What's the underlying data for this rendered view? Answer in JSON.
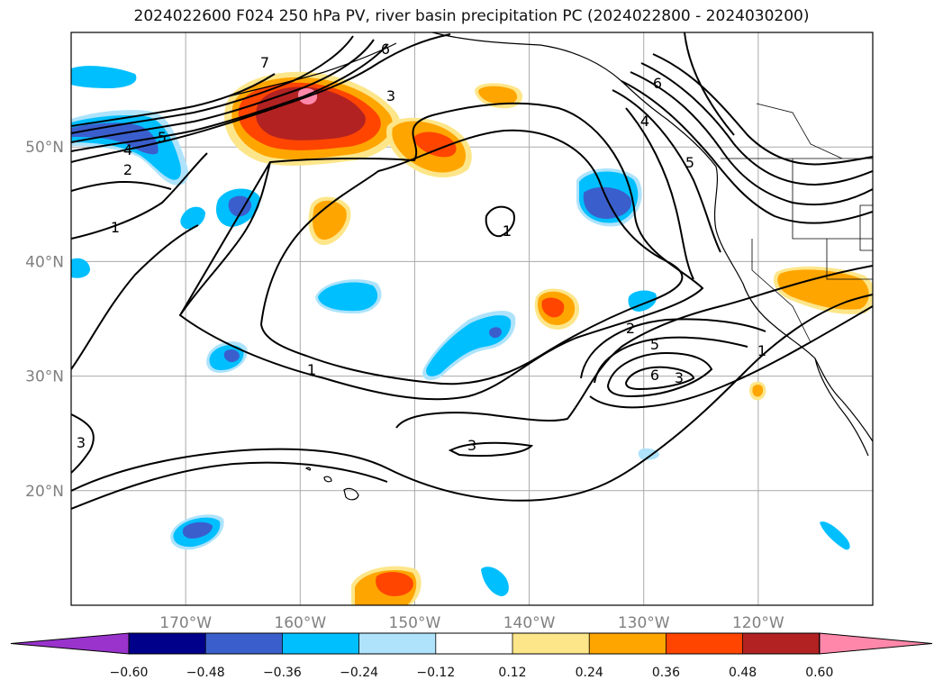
{
  "title": "2024022600 F024 250 hPa PV, river basin precipitation PC (2024022800 - 2024030200)",
  "map": {
    "lon_range": [
      -180,
      -110
    ],
    "lat_range": [
      10,
      60
    ],
    "lat_ticks": [
      "20°N",
      "30°N",
      "40°N",
      "50°N"
    ],
    "lon_ticks": [
      "170°W",
      "160°W",
      "150°W",
      "140°W",
      "130°W",
      "120°W"
    ],
    "gridlines": true,
    "pv_contour_labels": [
      "7",
      "6",
      "5",
      "4",
      "3",
      "2",
      "1",
      "1",
      "1",
      "2",
      "3",
      "5",
      "6",
      "4",
      "3",
      "1",
      "3",
      "4",
      "5",
      "6",
      "1"
    ]
  },
  "colorbar": {
    "ticks": [
      "−0.60",
      "−0.48",
      "−0.36",
      "−0.24",
      "−0.12",
      "0.12",
      "0.24",
      "0.36",
      "0.48",
      "0.60"
    ],
    "colors": [
      "#9933cc",
      "#00008b",
      "#3a5fcd",
      "#00bfff",
      "#aee3fb",
      "#ffffff",
      "#fde68a",
      "#ffa500",
      "#ff4500",
      "#b22222",
      "#ff88aa"
    ]
  }
}
